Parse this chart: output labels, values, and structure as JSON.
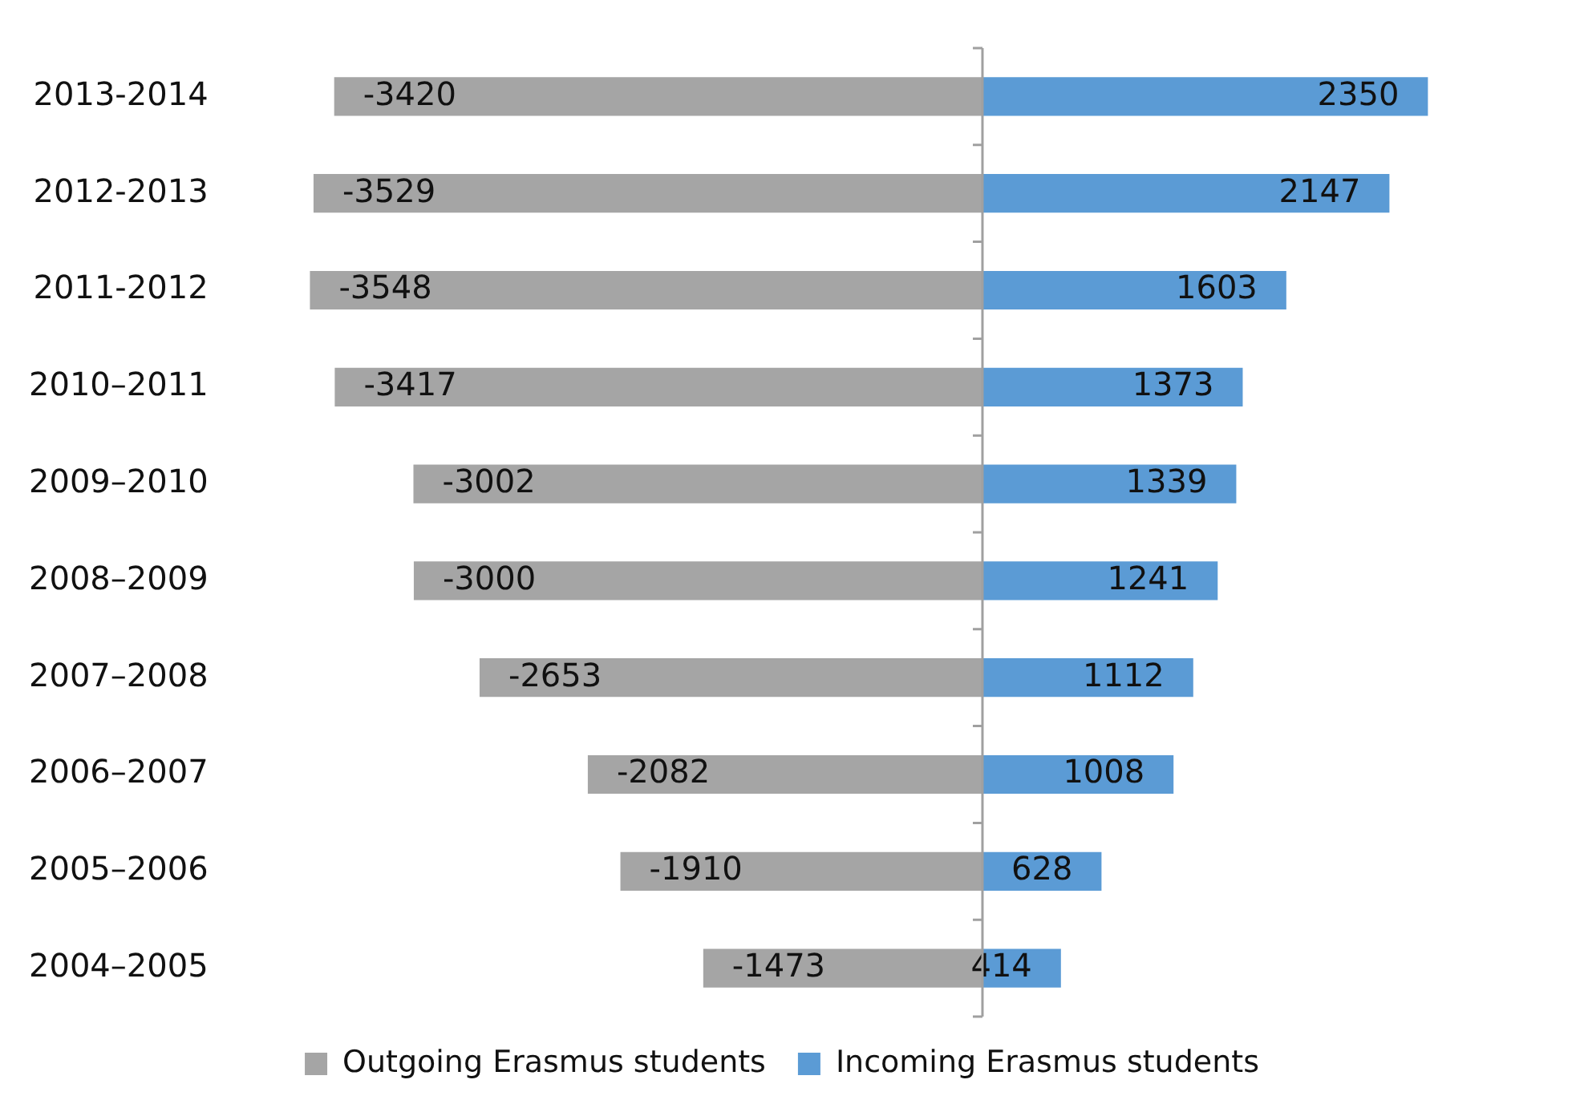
{
  "chart_data": {
    "type": "bar",
    "orientation": "horizontal",
    "stacked": true,
    "categories": [
      "2013-2014",
      "2012-2013",
      "2011-2012",
      "2010–2011",
      "2009–2010",
      "2008–2009",
      "2007–2008",
      "2006–2007",
      "2005–2006",
      "2004–2005"
    ],
    "series": [
      {
        "name": "Outgoing Erasmus students",
        "color": "#a5a5a5",
        "values": [
          -3420,
          -3529,
          -3548,
          -3417,
          -3002,
          -3000,
          -2653,
          -2082,
          -1910,
          -1473
        ]
      },
      {
        "name": "Incoming Erasmus students",
        "color": "#5b9bd5",
        "values": [
          2350,
          2147,
          1603,
          1373,
          1339,
          1241,
          1112,
          1008,
          628,
          414
        ]
      }
    ],
    "data_labels": true,
    "legend": "bottom",
    "tick_labels": "y",
    "grid": false
  }
}
